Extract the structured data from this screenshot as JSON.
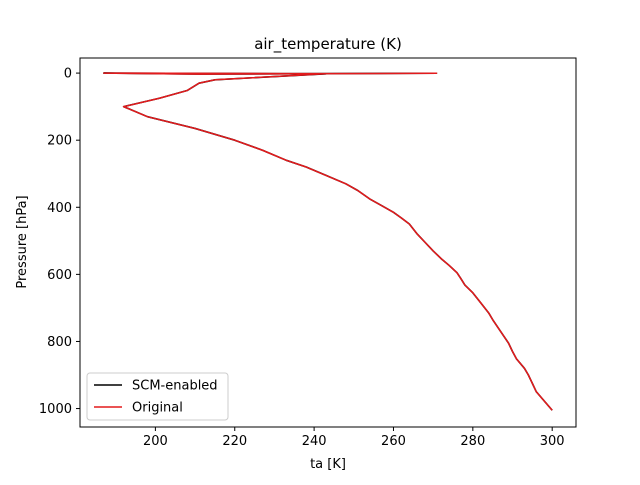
{
  "chart_data": {
    "type": "line",
    "title": "air_temperature (K)",
    "xlabel": "ta [K]",
    "ylabel": "Pressure [hPa]",
    "xlim": [
      181,
      306
    ],
    "ylim": [
      1055,
      -45
    ],
    "y_inverted": true,
    "x_ticks": [
      200,
      220,
      240,
      260,
      280,
      300
    ],
    "y_ticks": [
      0,
      200,
      400,
      600,
      800,
      1000
    ],
    "grid": false,
    "legend": "lower-left",
    "series": [
      {
        "name": "SCM-enabled",
        "color": "#000000",
        "points": [
          [
            271,
            0.5
          ],
          [
            245,
            1.5
          ],
          [
            211,
            3
          ],
          [
            187,
            0
          ],
          [
            243,
            2
          ],
          [
            215,
            20
          ],
          [
            211,
            30
          ],
          [
            208,
            52
          ],
          [
            201,
            75
          ],
          [
            192,
            100
          ],
          [
            198,
            130
          ],
          [
            210,
            165
          ],
          [
            220,
            200
          ],
          [
            227,
            230
          ],
          [
            233,
            260
          ],
          [
            238,
            280
          ],
          [
            243,
            305
          ],
          [
            248,
            330
          ],
          [
            251,
            350
          ],
          [
            254,
            375
          ],
          [
            257,
            395
          ],
          [
            260,
            415
          ],
          [
            262,
            432
          ],
          [
            264,
            450
          ],
          [
            266,
            480
          ],
          [
            268,
            505
          ],
          [
            270,
            530
          ],
          [
            272,
            553
          ],
          [
            274,
            573
          ],
          [
            276,
            595
          ],
          [
            277,
            613
          ],
          [
            278,
            632
          ],
          [
            280,
            655
          ],
          [
            282,
            685
          ],
          [
            284,
            715
          ],
          [
            285,
            735
          ],
          [
            287,
            770
          ],
          [
            289,
            805
          ],
          [
            290,
            830
          ],
          [
            291,
            852
          ],
          [
            293,
            880
          ],
          [
            294,
            900
          ],
          [
            295,
            925
          ],
          [
            296,
            950
          ],
          [
            300,
            1005
          ]
        ]
      },
      {
        "name": "Original",
        "color": "#e41a1c",
        "points": [
          [
            271,
            0.5
          ],
          [
            245,
            1.5
          ],
          [
            211,
            3
          ],
          [
            187,
            0
          ],
          [
            243,
            2
          ],
          [
            215,
            20
          ],
          [
            211,
            30
          ],
          [
            208,
            52
          ],
          [
            201,
            75
          ],
          [
            192,
            100
          ],
          [
            198,
            130
          ],
          [
            210,
            165
          ],
          [
            220,
            200
          ],
          [
            227,
            230
          ],
          [
            233,
            260
          ],
          [
            238,
            280
          ],
          [
            243,
            305
          ],
          [
            248,
            330
          ],
          [
            251,
            350
          ],
          [
            254,
            375
          ],
          [
            257,
            395
          ],
          [
            260,
            415
          ],
          [
            262,
            432
          ],
          [
            264,
            450
          ],
          [
            266,
            480
          ],
          [
            268,
            505
          ],
          [
            270,
            530
          ],
          [
            272,
            553
          ],
          [
            274,
            573
          ],
          [
            276,
            595
          ],
          [
            277,
            613
          ],
          [
            278,
            632
          ],
          [
            280,
            655
          ],
          [
            282,
            685
          ],
          [
            284,
            715
          ],
          [
            285,
            735
          ],
          [
            287,
            770
          ],
          [
            289,
            805
          ],
          [
            290,
            830
          ],
          [
            291,
            852
          ],
          [
            293,
            880
          ],
          [
            294,
            900
          ],
          [
            295,
            925
          ],
          [
            296,
            950
          ],
          [
            300,
            1005
          ]
        ]
      }
    ]
  }
}
